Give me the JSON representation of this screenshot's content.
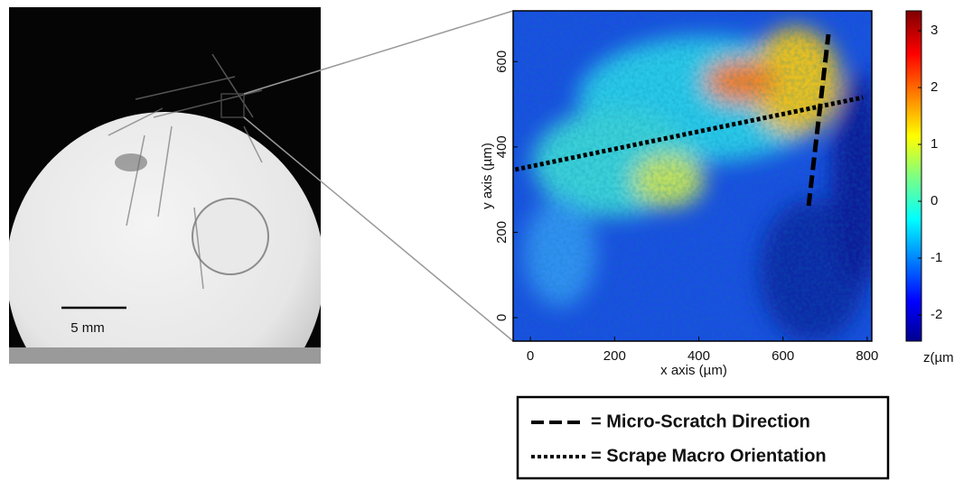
{
  "chart_data": {
    "type": "heatmap",
    "xlabel": "x axis (µm)",
    "ylabel": "y axis (µm)",
    "xlim": [
      -41,
      811
    ],
    "ylim": [
      -55,
      719
    ],
    "xticks": [
      0,
      200,
      400,
      600,
      800
    ],
    "yticks": [
      0,
      200,
      400,
      600
    ],
    "colorbar": {
      "label": "z(µm)",
      "lim": [
        -2.46,
        3.35
      ],
      "ticks": [
        -2,
        -1,
        0,
        1,
        2,
        3
      ]
    },
    "series": [
      {
        "name": "= Micro-Scratch Direction",
        "style": "dashed",
        "color": "#000000",
        "x": [
          661,
          708
        ],
        "y": [
          262,
          664
        ]
      },
      {
        "name": "= Scrape Macro Orientation",
        "style": "dotted",
        "color": "#000000",
        "x": [
          -36,
          790
        ],
        "y": [
          347,
          516
        ]
      }
    ]
  },
  "photo": {
    "scale_bar_label": "5 mm"
  }
}
